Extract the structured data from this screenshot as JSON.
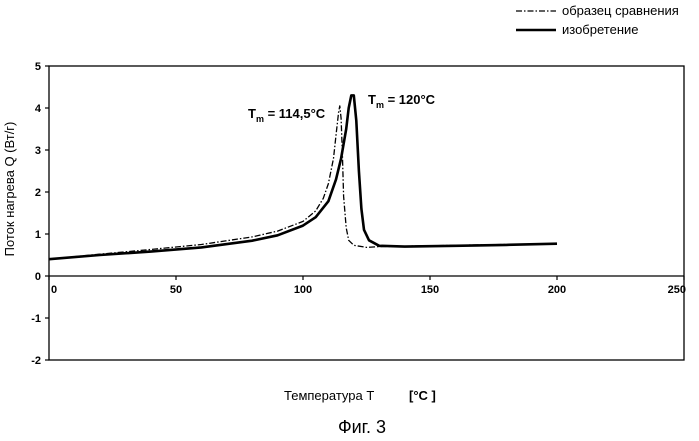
{
  "chart_data": {
    "type": "line",
    "title": "",
    "xlabel": "Температура Т",
    "xunit": "[°C ]",
    "ylabel": "Поток нагрева Q (Вт/г)",
    "caption": "Фиг. 3",
    "xlim": [
      0,
      250
    ],
    "ylim": [
      -2,
      5
    ],
    "xticks": [
      0,
      50,
      100,
      150,
      200,
      250
    ],
    "yticks": [
      -2,
      -1,
      0,
      1,
      2,
      3,
      4,
      5
    ],
    "grid": false,
    "legend_position": "top-right",
    "annotations": [
      {
        "main": "T",
        "sub": "m",
        "rest": " = 114,5°C",
        "x": 114.5,
        "y": 4.0
      },
      {
        "main": "T",
        "sub": "m",
        "rest": " = 120°C",
        "x": 120,
        "y": 4.3
      }
    ],
    "series": [
      {
        "name": "образец сравнения",
        "style": "dash-dot",
        "color": "#000000",
        "x": [
          0,
          20,
          40,
          60,
          80,
          90,
          100,
          105,
          108,
          110,
          112,
          113,
          114,
          114.5,
          115,
          115.5,
          116,
          117,
          118,
          120,
          125,
          130,
          140,
          160,
          180,
          200
        ],
        "y": [
          0.4,
          0.52,
          0.63,
          0.75,
          0.93,
          1.07,
          1.3,
          1.55,
          1.85,
          2.2,
          2.8,
          3.35,
          3.9,
          4.05,
          3.75,
          2.9,
          1.9,
          1.15,
          0.85,
          0.73,
          0.68,
          0.7,
          0.71,
          0.73,
          0.75,
          0.77
        ]
      },
      {
        "name": "изобретение",
        "style": "solid",
        "color": "#000000",
        "x": [
          0,
          20,
          40,
          60,
          80,
          90,
          100,
          105,
          110,
          113,
          115,
          117,
          118,
          119,
          120,
          121,
          122,
          123,
          124,
          126,
          130,
          140,
          160,
          180,
          200
        ],
        "y": [
          0.4,
          0.5,
          0.58,
          0.68,
          0.84,
          0.97,
          1.2,
          1.4,
          1.78,
          2.3,
          2.8,
          3.5,
          4.0,
          4.3,
          4.3,
          3.7,
          2.5,
          1.6,
          1.1,
          0.85,
          0.72,
          0.7,
          0.72,
          0.74,
          0.77
        ]
      }
    ]
  }
}
